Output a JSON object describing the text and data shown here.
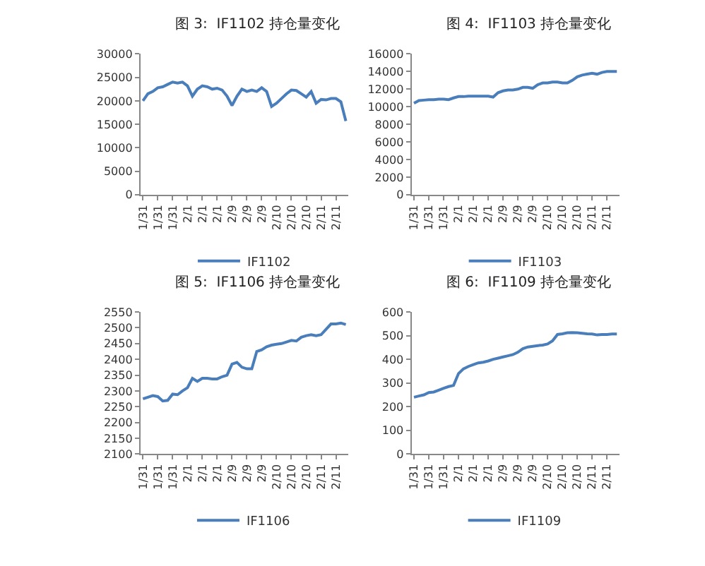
{
  "chart_data": [
    {
      "type": "line",
      "title": "图 3:  IF1102 持仓量变化",
      "categories": [
        "1/31",
        null,
        null,
        "1/31",
        null,
        null,
        "1/31",
        null,
        null,
        "2/1",
        null,
        null,
        "2/1",
        null,
        null,
        "2/1",
        null,
        null,
        "2/9",
        null,
        null,
        "2/9",
        null,
        null,
        "2/9",
        null,
        null,
        "2/10",
        null,
        null,
        "2/10",
        null,
        null,
        "2/10",
        null,
        null,
        "2/11",
        null,
        null,
        "2/11",
        null,
        null
      ],
      "series": [
        {
          "name": "IF1102",
          "color": "#4a7ebb",
          "values": [
            20000,
            21500,
            22000,
            22800,
            23000,
            23500,
            24000,
            23800,
            24000,
            23200,
            21000,
            22500,
            23200,
            23000,
            22500,
            22700,
            22300,
            21000,
            19000,
            21000,
            22500,
            22000,
            22300,
            22000,
            22800,
            22000,
            18800,
            19500,
            20500,
            21500,
            22300,
            22200,
            21500,
            20800,
            22000,
            19500,
            20300,
            20200,
            20500,
            20500,
            19800,
            15700
          ]
        }
      ],
      "ylim": [
        0,
        30000
      ],
      "yticks": [
        0,
        5000,
        10000,
        15000,
        20000,
        25000,
        30000
      ],
      "grid": false,
      "legend": "bottom"
    },
    {
      "type": "line",
      "title": "图 4:  IF1103 持仓量变化",
      "categories": [
        "1/31",
        null,
        null,
        "1/31",
        null,
        null,
        "1/31",
        null,
        null,
        "2/1",
        null,
        null,
        "2/1",
        null,
        null,
        "2/1",
        null,
        null,
        "2/9",
        null,
        null,
        "2/9",
        null,
        null,
        "2/9",
        null,
        null,
        "2/10",
        null,
        null,
        "2/10",
        null,
        null,
        "2/10",
        null,
        null,
        "2/11",
        null,
        null,
        "2/11",
        null,
        null
      ],
      "series": [
        {
          "name": "IF1103",
          "color": "#4a7ebb",
          "values": [
            10400,
            10700,
            10750,
            10800,
            10800,
            10850,
            10850,
            10800,
            11000,
            11150,
            11150,
            11200,
            11200,
            11200,
            11200,
            11200,
            11100,
            11600,
            11800,
            11900,
            11900,
            12000,
            12200,
            12200,
            12100,
            12500,
            12700,
            12700,
            12800,
            12800,
            12700,
            12700,
            13000,
            13400,
            13600,
            13700,
            13800,
            13700,
            13900,
            14000,
            14000,
            14000
          ]
        }
      ],
      "ylim": [
        0,
        16000
      ],
      "yticks": [
        0,
        2000,
        4000,
        6000,
        8000,
        10000,
        12000,
        14000,
        16000
      ],
      "grid": false,
      "legend": "bottom"
    },
    {
      "type": "line",
      "title": "图 5:  IF1106 持仓量变化",
      "categories": [
        "1/31",
        null,
        null,
        "1/31",
        null,
        null,
        "1/31",
        null,
        null,
        "2/1",
        null,
        null,
        "2/1",
        null,
        null,
        "2/1",
        null,
        null,
        "2/9",
        null,
        null,
        "2/9",
        null,
        null,
        "2/9",
        null,
        null,
        "2/10",
        null,
        null,
        "2/10",
        null,
        null,
        "2/10",
        null,
        null,
        "2/11",
        null,
        null,
        "2/11",
        null,
        null
      ],
      "series": [
        {
          "name": "IF1106",
          "color": "#4a7ebb",
          "values": [
            2275,
            2280,
            2285,
            2282,
            2268,
            2270,
            2290,
            2288,
            2300,
            2310,
            2340,
            2330,
            2340,
            2340,
            2338,
            2338,
            2345,
            2350,
            2385,
            2390,
            2375,
            2370,
            2370,
            2425,
            2430,
            2440,
            2445,
            2448,
            2450,
            2455,
            2460,
            2458,
            2470,
            2475,
            2478,
            2475,
            2478,
            2495,
            2512,
            2512,
            2515,
            2510
          ]
        }
      ],
      "ylim": [
        2100,
        2550
      ],
      "yticks": [
        2100,
        2150,
        2200,
        2250,
        2300,
        2350,
        2400,
        2450,
        2500,
        2550
      ],
      "grid": false,
      "legend": "bottom"
    },
    {
      "type": "line",
      "title": "图 6:  IF1109 持仓量变化",
      "categories": [
        "1/31",
        null,
        null,
        "1/31",
        null,
        null,
        "1/31",
        null,
        null,
        "2/1",
        null,
        null,
        "2/1",
        null,
        null,
        "2/1",
        null,
        null,
        "2/9",
        null,
        null,
        "2/9",
        null,
        null,
        "2/9",
        null,
        null,
        "2/10",
        null,
        null,
        "2/10",
        null,
        null,
        "2/10",
        null,
        null,
        "2/11",
        null,
        null,
        "2/11",
        null,
        null
      ],
      "series": [
        {
          "name": "IF1109",
          "color": "#4a7ebb",
          "values": [
            240,
            245,
            250,
            260,
            262,
            270,
            278,
            285,
            290,
            340,
            360,
            370,
            378,
            385,
            388,
            393,
            400,
            405,
            410,
            415,
            420,
            430,
            445,
            452,
            455,
            458,
            460,
            465,
            478,
            505,
            508,
            512,
            513,
            512,
            510,
            508,
            507,
            503,
            505,
            505,
            507,
            507
          ]
        }
      ],
      "ylim": [
        0,
        600
      ],
      "yticks": [
        0,
        100,
        200,
        300,
        400,
        500,
        600
      ],
      "grid": false,
      "legend": "bottom"
    }
  ]
}
